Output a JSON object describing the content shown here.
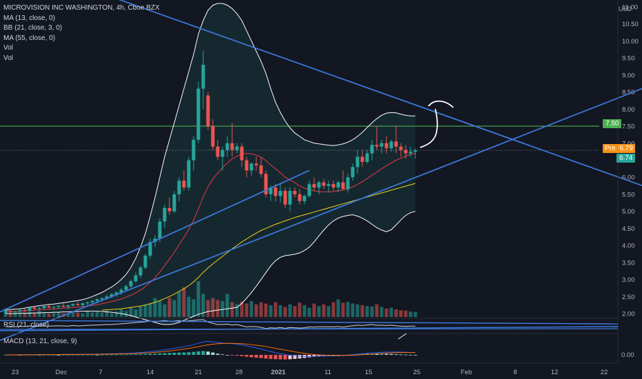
{
  "header": {
    "symbol_line": "MICROVISION INC WASHINGTON, 4h, Cboe BZX",
    "indicators": [
      "MA (13, close, 0)",
      "BB (21, close, 3, 0)",
      "MA (55, close, 0)",
      "Vol",
      "Vol"
    ],
    "currency": "USD"
  },
  "panes": {
    "rsi_label": "RSI (21, close)",
    "macd_label": "MACD (13, 21, close, 9)",
    "macd_zero_label": "0.00"
  },
  "badges": {
    "pre_label": "Pre",
    "pre_value": "6.79",
    "last_value": "6.74",
    "level_value": "7.50"
  },
  "colors": {
    "background": "#131722",
    "up": "#26a69a",
    "down": "#ef5350",
    "ma13": "#f23645",
    "ma55": "#f5d21b",
    "bollinger": "#ffffff",
    "trendline": "#3c78d8",
    "level": "#4caf50",
    "pre_badge": "#f7931a",
    "last_badge": "#26a69a",
    "macd_line": "#2962ff",
    "signal_line": "#ff6d00"
  },
  "chart_data": {
    "type": "candlestick",
    "yticks": [
      "2.00",
      "2.50",
      "3.00",
      "3.50",
      "4.00",
      "4.50",
      "5.00",
      "5.50",
      "6.00",
      "6.50",
      "7.00",
      "7.50",
      "8.00",
      "8.50",
      "9.00",
      "9.50",
      "10.00",
      "10.50",
      "11.00"
    ],
    "ylim": [
      1.9,
      11.1
    ],
    "xticks": [
      "23",
      "Dec",
      "7",
      "14",
      "21",
      "28",
      "2021",
      "11",
      "15",
      "25",
      "Feb",
      "8",
      "12",
      "22"
    ],
    "level_line": 7.5,
    "candles": [
      [
        2.03,
        2.1,
        2.0,
        2.07
      ],
      [
        2.07,
        2.1,
        2.02,
        2.04
      ],
      [
        2.04,
        2.08,
        2.0,
        2.06
      ],
      [
        2.06,
        2.12,
        2.03,
        2.1
      ],
      [
        2.1,
        2.15,
        2.05,
        2.08
      ],
      [
        2.08,
        2.2,
        2.06,
        2.18
      ],
      [
        2.18,
        2.22,
        2.1,
        2.14
      ],
      [
        2.14,
        2.2,
        2.08,
        2.16
      ],
      [
        2.16,
        2.24,
        2.12,
        2.22
      ],
      [
        2.22,
        2.26,
        2.15,
        2.18
      ],
      [
        2.18,
        2.22,
        2.1,
        2.2
      ],
      [
        2.2,
        2.25,
        2.14,
        2.23
      ],
      [
        2.23,
        2.3,
        2.18,
        2.2
      ],
      [
        2.2,
        2.26,
        2.12,
        2.24
      ],
      [
        2.24,
        2.3,
        2.2,
        2.28
      ],
      [
        2.28,
        2.34,
        2.22,
        2.25
      ],
      [
        2.25,
        2.32,
        2.2,
        2.3
      ],
      [
        2.3,
        2.36,
        2.24,
        2.33
      ],
      [
        2.33,
        2.4,
        2.28,
        2.37
      ],
      [
        2.37,
        2.45,
        2.3,
        2.42
      ],
      [
        2.42,
        2.48,
        2.35,
        2.45
      ],
      [
        2.45,
        2.55,
        2.4,
        2.5
      ],
      [
        2.5,
        2.6,
        2.45,
        2.57
      ],
      [
        2.57,
        2.65,
        2.5,
        2.62
      ],
      [
        2.62,
        2.75,
        2.55,
        2.7
      ],
      [
        2.7,
        2.85,
        2.65,
        2.8
      ],
      [
        2.8,
        3.0,
        2.75,
        2.95
      ],
      [
        2.95,
        3.2,
        2.9,
        3.12
      ],
      [
        3.12,
        3.4,
        3.05,
        3.35
      ],
      [
        3.35,
        3.75,
        3.3,
        3.7
      ],
      [
        3.7,
        4.2,
        3.6,
        4.1
      ],
      [
        4.1,
        4.3,
        3.95,
        4.2
      ],
      [
        4.2,
        4.8,
        4.1,
        4.7
      ],
      [
        4.7,
        5.2,
        4.5,
        5.1
      ],
      [
        5.1,
        5.4,
        4.9,
        5.0
      ],
      [
        5.0,
        5.6,
        4.95,
        5.5
      ],
      [
        5.5,
        6.0,
        5.3,
        5.9
      ],
      [
        5.9,
        6.2,
        5.6,
        5.7
      ],
      [
        5.7,
        6.6,
        5.6,
        6.5
      ],
      [
        6.5,
        7.2,
        6.2,
        7.1
      ],
      [
        7.1,
        8.8,
        7.0,
        8.6
      ],
      [
        8.6,
        9.7,
        8.0,
        9.3
      ],
      [
        8.4,
        8.5,
        7.4,
        7.5
      ],
      [
        7.5,
        7.7,
        6.8,
        6.9
      ],
      [
        6.9,
        7.1,
        6.5,
        6.6
      ],
      [
        6.6,
        6.9,
        6.2,
        6.8
      ],
      [
        6.8,
        7.2,
        6.6,
        7.0
      ],
      [
        7.0,
        7.6,
        6.6,
        6.8
      ],
      [
        6.8,
        7.0,
        6.7,
        6.9
      ],
      [
        6.9,
        7.0,
        6.3,
        6.5
      ],
      [
        6.5,
        6.6,
        6.0,
        6.2
      ],
      [
        6.2,
        6.45,
        6.05,
        6.4
      ],
      [
        6.4,
        6.6,
        6.2,
        6.35
      ],
      [
        6.35,
        6.6,
        6.0,
        6.1
      ],
      [
        6.1,
        6.2,
        5.4,
        5.5
      ],
      [
        5.5,
        5.75,
        5.3,
        5.7
      ],
      [
        5.7,
        5.8,
        5.3,
        5.45
      ],
      [
        5.45,
        5.8,
        5.25,
        5.6
      ],
      [
        5.6,
        5.7,
        5.1,
        5.2
      ],
      [
        5.2,
        5.7,
        5.0,
        5.6
      ],
      [
        5.6,
        5.7,
        5.4,
        5.5
      ],
      [
        5.5,
        5.65,
        5.2,
        5.3
      ],
      [
        5.3,
        5.5,
        5.2,
        5.45
      ],
      [
        5.45,
        5.9,
        5.4,
        5.8
      ],
      [
        5.8,
        6.0,
        5.6,
        5.7
      ],
      [
        5.7,
        5.9,
        5.5,
        5.85
      ],
      [
        5.85,
        5.95,
        5.65,
        5.75
      ],
      [
        5.75,
        5.9,
        5.55,
        5.8
      ],
      [
        5.8,
        5.9,
        5.6,
        5.7
      ],
      [
        5.7,
        5.9,
        5.55,
        5.85
      ],
      [
        5.85,
        6.2,
        5.7,
        5.65
      ],
      [
        5.65,
        6.1,
        5.55,
        6.0
      ],
      [
        6.0,
        6.4,
        5.9,
        6.3
      ],
      [
        6.3,
        6.8,
        6.1,
        6.6
      ],
      [
        6.6,
        6.8,
        6.3,
        6.45
      ],
      [
        6.45,
        6.8,
        6.4,
        6.7
      ],
      [
        6.7,
        7.1,
        6.5,
        6.95
      ],
      [
        6.95,
        7.5,
        6.8,
        6.9
      ],
      [
        6.9,
        7.1,
        6.7,
        7.0
      ],
      [
        7.0,
        7.2,
        6.7,
        6.85
      ],
      [
        6.85,
        7.1,
        6.75,
        7.05
      ],
      [
        7.05,
        7.5,
        6.7,
        6.9
      ],
      [
        6.9,
        7.0,
        6.6,
        6.8
      ],
      [
        6.8,
        6.95,
        6.55,
        6.7
      ],
      [
        6.7,
        6.9,
        6.6,
        6.75
      ],
      [
        6.75,
        6.85,
        6.55,
        6.79
      ]
    ],
    "volume": [
      20,
      8,
      10,
      8,
      9,
      12,
      10,
      14,
      9,
      8,
      10,
      12,
      9,
      8,
      12,
      10,
      9,
      14,
      11,
      12,
      10,
      15,
      9,
      13,
      18,
      14,
      22,
      18,
      25,
      30,
      32,
      45,
      38,
      30,
      45,
      40,
      60,
      70,
      48,
      42,
      85,
      55,
      40,
      45,
      40,
      38,
      55,
      35,
      30,
      36,
      32,
      38,
      30,
      35,
      32,
      28,
      35,
      28,
      24,
      30,
      26,
      34,
      28,
      22,
      32,
      26,
      30,
      26,
      35,
      42,
      34,
      36,
      32,
      30,
      28,
      26,
      25,
      30,
      24,
      20,
      22,
      18,
      16,
      15,
      13,
      12
    ],
    "ma13": [
      2.05,
      2.06,
      2.06,
      2.07,
      2.08,
      2.09,
      2.1,
      2.11,
      2.12,
      2.13,
      2.14,
      2.15,
      2.16,
      2.17,
      2.18,
      2.19,
      2.2,
      2.22,
      2.24,
      2.26,
      2.29,
      2.32,
      2.35,
      2.39,
      2.43,
      2.48,
      2.54,
      2.61,
      2.69,
      2.79,
      2.91,
      3.05,
      3.22,
      3.41,
      3.6,
      3.8,
      4.02,
      4.24,
      4.47,
      4.74,
      5.07,
      5.42,
      5.72,
      5.95,
      6.12,
      6.28,
      6.42,
      6.54,
      6.62,
      6.68,
      6.7,
      6.69,
      6.65,
      6.59,
      6.49,
      6.36,
      6.25,
      6.13,
      6.0,
      5.92,
      5.84,
      5.75,
      5.68,
      5.64,
      5.6,
      5.58,
      5.57,
      5.57,
      5.58,
      5.6,
      5.62,
      5.66,
      5.72,
      5.79,
      5.87,
      5.96,
      6.06,
      6.15,
      6.25,
      6.34,
      6.42,
      6.5,
      6.56,
      6.62,
      6.67,
      6.71
    ],
    "ma55": [
      null,
      null,
      null,
      null,
      null,
      null,
      null,
      null,
      null,
      null,
      null,
      null,
      null,
      null,
      null,
      null,
      null,
      null,
      null,
      null,
      2.1,
      2.11,
      2.12,
      2.13,
      2.14,
      2.16,
      2.18,
      2.2,
      2.22,
      2.25,
      2.29,
      2.33,
      2.38,
      2.44,
      2.5,
      2.57,
      2.65,
      2.73,
      2.82,
      2.93,
      3.06,
      3.21,
      3.34,
      3.46,
      3.57,
      3.68,
      3.79,
      3.9,
      4.0,
      4.1,
      4.19,
      4.28,
      4.36,
      4.44,
      4.5,
      4.56,
      4.62,
      4.67,
      4.72,
      4.77,
      4.82,
      4.86,
      4.9,
      4.94,
      4.98,
      5.02,
      5.06,
      5.1,
      5.14,
      5.18,
      5.22,
      5.26,
      5.3,
      5.34,
      5.38,
      5.42,
      5.46,
      5.5,
      5.54,
      5.58,
      5.62,
      5.66,
      5.7,
      5.74,
      5.78,
      5.82
    ],
    "bb_upper": [
      2.1,
      2.12,
      2.13,
      2.14,
      2.16,
      2.19,
      2.21,
      2.23,
      2.25,
      2.27,
      2.28,
      2.3,
      2.32,
      2.34,
      2.36,
      2.38,
      2.41,
      2.45,
      2.5,
      2.56,
      2.62,
      2.7,
      2.78,
      2.88,
      3.0,
      3.15,
      3.35,
      3.62,
      3.95,
      4.35,
      4.85,
      5.4,
      6.0,
      6.6,
      7.1,
      7.6,
      8.1,
      8.6,
      9.1,
      9.6,
      10.2,
      10.6,
      10.9,
      11.05,
      11.1,
      11.1,
      11.05,
      10.95,
      10.8,
      10.6,
      10.3,
      10.0,
      9.7,
      9.4,
      9.05,
      8.6,
      8.2,
      7.9,
      7.65,
      7.45,
      7.3,
      7.2,
      7.1,
      7.05,
      7.0,
      6.98,
      6.96,
      6.94,
      6.93,
      6.95,
      6.98,
      7.03,
      7.1,
      7.2,
      7.32,
      7.46,
      7.6,
      7.72,
      7.82,
      7.88,
      7.9,
      7.89,
      7.85,
      7.82,
      7.8,
      7.8
    ],
    "bb_lower": [
      2.0,
      2.0,
      2.0,
      2.01,
      2.01,
      2.01,
      2.02,
      2.02,
      2.03,
      2.03,
      2.04,
      2.04,
      2.05,
      2.05,
      2.06,
      2.06,
      2.07,
      2.07,
      2.07,
      2.07,
      2.06,
      2.05,
      2.04,
      2.02,
      2.0,
      1.97,
      1.94,
      1.9,
      1.86,
      1.82,
      1.78,
      1.74,
      1.7,
      1.68,
      1.68,
      1.7,
      1.74,
      1.8,
      1.86,
      1.92,
      1.98,
      2.02,
      2.06,
      2.08,
      2.1,
      2.12,
      2.14,
      2.16,
      2.18,
      2.3,
      2.45,
      2.62,
      2.8,
      3.0,
      3.2,
      3.4,
      3.55,
      3.65,
      3.7,
      3.72,
      3.74,
      3.78,
      3.85,
      3.95,
      4.1,
      4.28,
      4.45,
      4.6,
      4.72,
      4.8,
      4.85,
      4.88,
      4.9,
      4.86,
      4.8,
      4.72,
      4.62,
      4.52,
      4.45,
      4.4,
      4.46,
      4.6,
      4.75,
      4.88,
      4.96,
      5.0
    ],
    "bb_mid": [
      2.05,
      2.06,
      2.07,
      2.08,
      2.09,
      2.1,
      2.11,
      2.12,
      2.13,
      2.14,
      2.15,
      2.16,
      2.17,
      2.18,
      2.19,
      2.2,
      2.22,
      2.24,
      2.26,
      2.29,
      2.32,
      2.35,
      2.39,
      2.43,
      2.48,
      2.54,
      2.61,
      2.7,
      2.8,
      2.92,
      3.06,
      3.22,
      3.4,
      3.6,
      3.8,
      4.0,
      4.2,
      4.4,
      4.62,
      4.86,
      5.12,
      5.36,
      5.56,
      5.72,
      5.85,
      5.95,
      6.03,
      6.08,
      6.12,
      6.14,
      6.14,
      6.12,
      6.09,
      6.05,
      6.0,
      5.94,
      5.88,
      5.82,
      5.77,
      5.72,
      5.68,
      5.65,
      5.62,
      5.6,
      5.59,
      5.59,
      5.6,
      5.61,
      5.63,
      5.66,
      5.7,
      5.75,
      5.8,
      5.86,
      5.92,
      5.99,
      6.06,
      6.12,
      6.18,
      6.23,
      6.28,
      6.32,
      6.35,
      6.37,
      6.39,
      6.4
    ],
    "trendlines": [
      {
        "from": [
          0,
          12.4
        ],
        "to": [
          155,
          4.6
        ]
      },
      {
        "from": [
          -5,
          1.0
        ],
        "to": [
          150,
          9.6
        ]
      },
      {
        "from": [
          -5,
          1.8
        ],
        "to": [
          63,
          6.2
        ]
      }
    ],
    "rsi": [
      52,
      50,
      51,
      53,
      52,
      55,
      53,
      54,
      56,
      54,
      55,
      56,
      55,
      54,
      57,
      55,
      56,
      58,
      59,
      60,
      61,
      63,
      62,
      64,
      66,
      68,
      70,
      72,
      74,
      76,
      79,
      78,
      80,
      82,
      79,
      80,
      82,
      78,
      81,
      83,
      86,
      87,
      75,
      68,
      62,
      63,
      64,
      60,
      62,
      56,
      50,
      52,
      51,
      48,
      42,
      46,
      44,
      47,
      43,
      47,
      46,
      44,
      46,
      50,
      49,
      51,
      50,
      51,
      50,
      52,
      49,
      53,
      56,
      59,
      57,
      60,
      62,
      58,
      59,
      57,
      59,
      56,
      54,
      53,
      54,
      54
    ],
    "macd": [
      0,
      0.01,
      0.01,
      0.01,
      0.02,
      0.02,
      0.02,
      0.03,
      0.03,
      0.03,
      0.03,
      0.03,
      0.04,
      0.04,
      0.04,
      0.04,
      0.05,
      0.05,
      0.06,
      0.06,
      0.07,
      0.08,
      0.09,
      0.1,
      0.11,
      0.12,
      0.14,
      0.16,
      0.19,
      0.22,
      0.26,
      0.3,
      0.35,
      0.41,
      0.47,
      0.53,
      0.6,
      0.67,
      0.74,
      0.83,
      0.94,
      1.05,
      1.08,
      1.05,
      1.0,
      0.96,
      0.93,
      0.9,
      0.86,
      0.8,
      0.72,
      0.64,
      0.56,
      0.47,
      0.37,
      0.27,
      0.18,
      0.1,
      0.02,
      -0.03,
      -0.07,
      -0.11,
      -0.13,
      -0.13,
      -0.12,
      -0.11,
      -0.1,
      -0.09,
      -0.08,
      -0.06,
      -0.05,
      -0.02,
      0.02,
      0.06,
      0.1,
      0.13,
      0.17,
      0.19,
      0.21,
      0.22,
      0.23,
      0.23,
      0.22,
      0.21,
      0.2,
      0.19
    ],
    "signal": [
      0,
      0.0,
      0.0,
      0.01,
      0.01,
      0.01,
      0.01,
      0.02,
      0.02,
      0.02,
      0.02,
      0.03,
      0.03,
      0.03,
      0.03,
      0.03,
      0.04,
      0.04,
      0.04,
      0.05,
      0.05,
      0.06,
      0.06,
      0.07,
      0.08,
      0.09,
      0.1,
      0.11,
      0.13,
      0.15,
      0.17,
      0.2,
      0.23,
      0.27,
      0.31,
      0.36,
      0.41,
      0.47,
      0.53,
      0.59,
      0.66,
      0.74,
      0.81,
      0.86,
      0.9,
      0.92,
      0.93,
      0.93,
      0.92,
      0.9,
      0.87,
      0.83,
      0.78,
      0.73,
      0.67,
      0.6,
      0.53,
      0.46,
      0.39,
      0.32,
      0.25,
      0.18,
      0.12,
      0.07,
      0.03,
      0.0,
      -0.02,
      -0.04,
      -0.05,
      -0.05,
      -0.05,
      -0.04,
      -0.03,
      -0.01,
      0.01,
      0.04,
      0.07,
      0.1,
      0.12,
      0.14,
      0.16,
      0.18,
      0.19,
      0.19,
      0.19,
      0.19
    ]
  }
}
